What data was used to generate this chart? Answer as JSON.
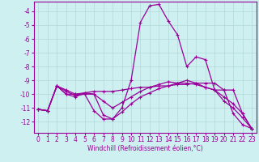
{
  "xlabel": "Windchill (Refroidissement éolien,°C)",
  "ylabel": "",
  "bg_color": "#cff0f0",
  "grid_color": "#b0d8d8",
  "line_color": "#990099",
  "x": [
    0,
    1,
    2,
    3,
    4,
    5,
    6,
    7,
    8,
    9,
    10,
    11,
    12,
    13,
    14,
    15,
    16,
    17,
    18,
    19,
    20,
    21,
    22,
    23
  ],
  "series": [
    [
      -11.1,
      -11.2,
      -9.4,
      -10.0,
      -10.0,
      -10.0,
      -11.2,
      -11.8,
      -11.8,
      -11.0,
      -9.0,
      -4.8,
      -3.6,
      -3.5,
      -4.7,
      -5.7,
      -8.0,
      -7.3,
      -7.5,
      -9.7,
      -9.7,
      -11.4,
      -12.2,
      -12.5
    ],
    [
      -11.1,
      -11.2,
      -9.4,
      -10.0,
      -10.2,
      -9.9,
      -9.8,
      -9.8,
      -9.8,
      -9.7,
      -9.6,
      -9.5,
      -9.5,
      -9.4,
      -9.4,
      -9.3,
      -9.3,
      -9.2,
      -9.2,
      -9.2,
      -9.7,
      -9.7,
      -11.4,
      -12.5
    ],
    [
      -11.1,
      -11.2,
      -9.4,
      -9.7,
      -10.0,
      -9.9,
      -10.0,
      -11.5,
      -11.8,
      -11.3,
      -10.7,
      -10.2,
      -9.9,
      -9.6,
      -9.4,
      -9.2,
      -9.0,
      -9.2,
      -9.5,
      -9.7,
      -10.5,
      -11.0,
      -11.7,
      -12.5
    ],
    [
      -11.1,
      -11.2,
      -9.4,
      -9.8,
      -10.1,
      -10.0,
      -10.0,
      -10.5,
      -11.0,
      -10.6,
      -10.2,
      -9.8,
      -9.5,
      -9.3,
      -9.1,
      -9.2,
      -9.2,
      -9.3,
      -9.5,
      -9.7,
      -10.2,
      -10.7,
      -11.4,
      -12.5
    ]
  ],
  "ylim": [
    -12.8,
    -3.3
  ],
  "yticks": [
    -4,
    -5,
    -6,
    -7,
    -8,
    -9,
    -10,
    -11,
    -12
  ],
  "xticks": [
    0,
    1,
    2,
    3,
    4,
    5,
    6,
    7,
    8,
    9,
    10,
    11,
    12,
    13,
    14,
    15,
    16,
    17,
    18,
    19,
    20,
    21,
    22,
    23
  ],
  "marker": "+",
  "markersize": 3,
  "linewidth": 0.9,
  "tick_fontsize": 5.5,
  "xlabel_fontsize": 5.5
}
